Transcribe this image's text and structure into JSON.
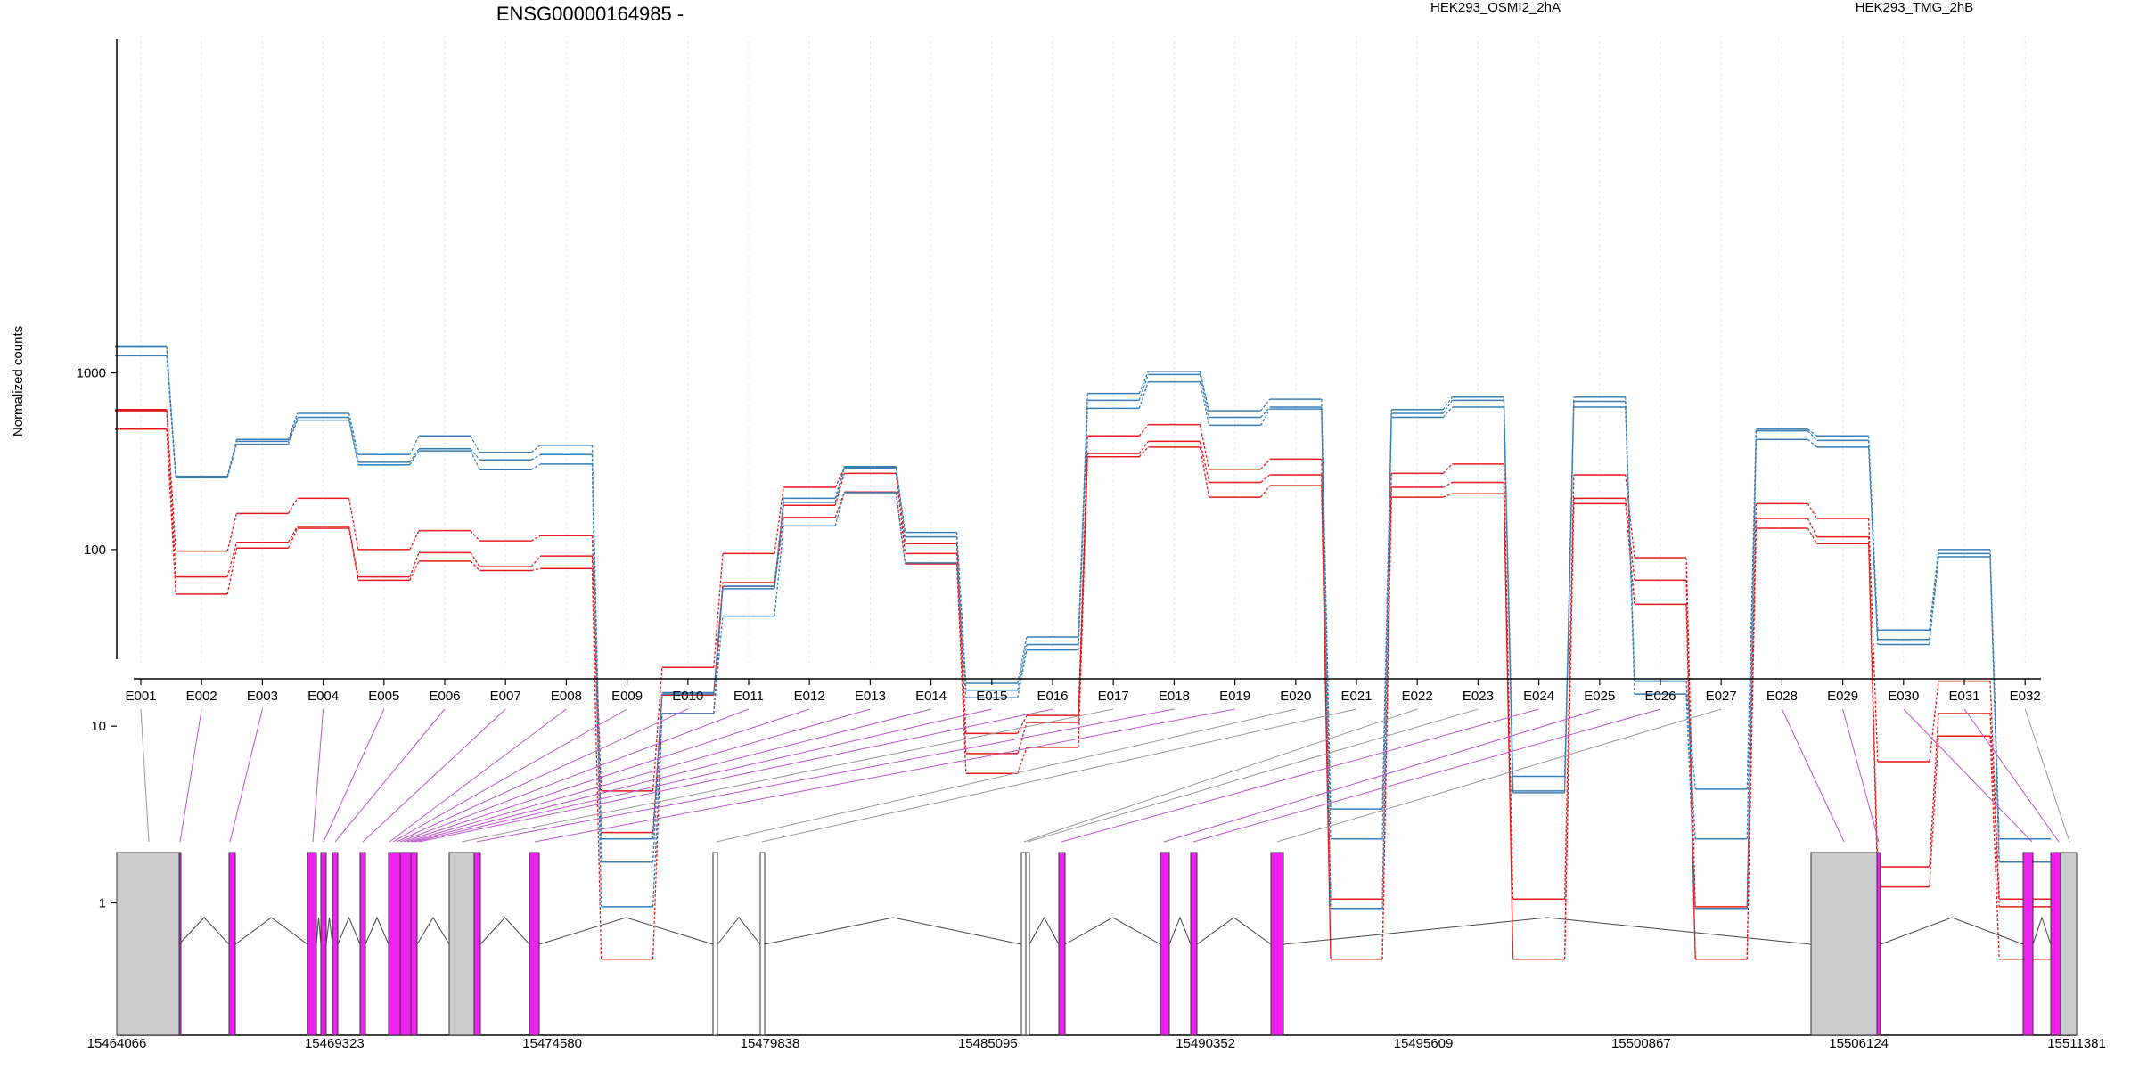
{
  "chart_data": {
    "type": "line",
    "title": "ENSG00000164985 -",
    "ylabel": "Normalized counts",
    "yscale": "log",
    "yticks": [
      "1",
      "10",
      "100",
      "1000"
    ],
    "categories": [
      "E001",
      "E002",
      "E003",
      "E004",
      "E005",
      "E006",
      "E007",
      "E008",
      "E009",
      "E010",
      "E011",
      "E012",
      "E013",
      "E014",
      "E015",
      "E016",
      "E017",
      "E018",
      "E019",
      "E020",
      "E021",
      "E022",
      "E023",
      "E024",
      "E025",
      "E026",
      "E027",
      "E028",
      "E029",
      "E030",
      "E031",
      "E032"
    ],
    "series": [
      {
        "name": "HEK293_OSMI2_2hA",
        "color": "#e41a1c",
        "replicates": [
          [
            620,
            98,
            160,
            195,
            100,
            128,
            112,
            120,
            4.3,
            21.5,
            95,
            225,
            290,
            108,
            9.1,
            11.5,
            440,
            510,
            285,
            325,
            1.05,
            270,
            305,
            1.05,
            265,
            90,
            0.95,
            182,
            150,
            6.3,
            18,
            1.05
          ],
          [
            610,
            70,
            110,
            135,
            70,
            96,
            80,
            92,
            2.5,
            15,
            65,
            178,
            270,
            95,
            7,
            10.5,
            350,
            410,
            240,
            265,
            0.48,
            225,
            240,
            0.48,
            195,
            67,
            0.48,
            150,
            118,
            1.6,
            11.8,
            0.95
          ],
          [
            480,
            56,
            102,
            132,
            67,
            86,
            76,
            78,
            0.48,
            11.8,
            62,
            152,
            212,
            83,
            5.4,
            7.6,
            335,
            380,
            198,
            230,
            0.48,
            198,
            207,
            0.48,
            182,
            49,
            0.48,
            132,
            108,
            1.23,
            8.8,
            0.48
          ]
        ]
      },
      {
        "name": "HEK293_TMG_2hB",
        "color": "#377eb8",
        "replicates": [
          [
            1420,
            260,
            420,
            590,
            345,
            440,
            355,
            390,
            2.3,
            15.5,
            62,
            195,
            295,
            125,
            17.5,
            32,
            765,
            1020,
            610,
            710,
            3.4,
            620,
            730,
            5.2,
            730,
            18,
            4.4,
            480,
            440,
            35,
            100,
            2.3
          ],
          [
            1400,
            258,
            410,
            560,
            312,
            372,
            322,
            345,
            1.7,
            15.2,
            60,
            185,
            290,
            118,
            16,
            29,
            700,
            980,
            560,
            640,
            2.3,
            590,
            700,
            4.3,
            690,
            18,
            2.3,
            470,
            415,
            31,
            95,
            1.7
          ],
          [
            1250,
            255,
            395,
            540,
            302,
            362,
            283,
            305,
            0.95,
            11.8,
            42,
            136,
            210,
            84,
            14.5,
            27,
            630,
            890,
            505,
            625,
            0.93,
            560,
            640,
            4.2,
            640,
            15.2,
            0.93,
            420,
            380,
            29,
            91,
            1.7
          ]
        ]
      }
    ],
    "gene_model": {
      "coord_ticks": [
        "15464066",
        "15469323",
        "15474580",
        "15479838",
        "15485095",
        "15490352",
        "15495609",
        "15500867",
        "15506124",
        "15511381"
      ]
    }
  }
}
